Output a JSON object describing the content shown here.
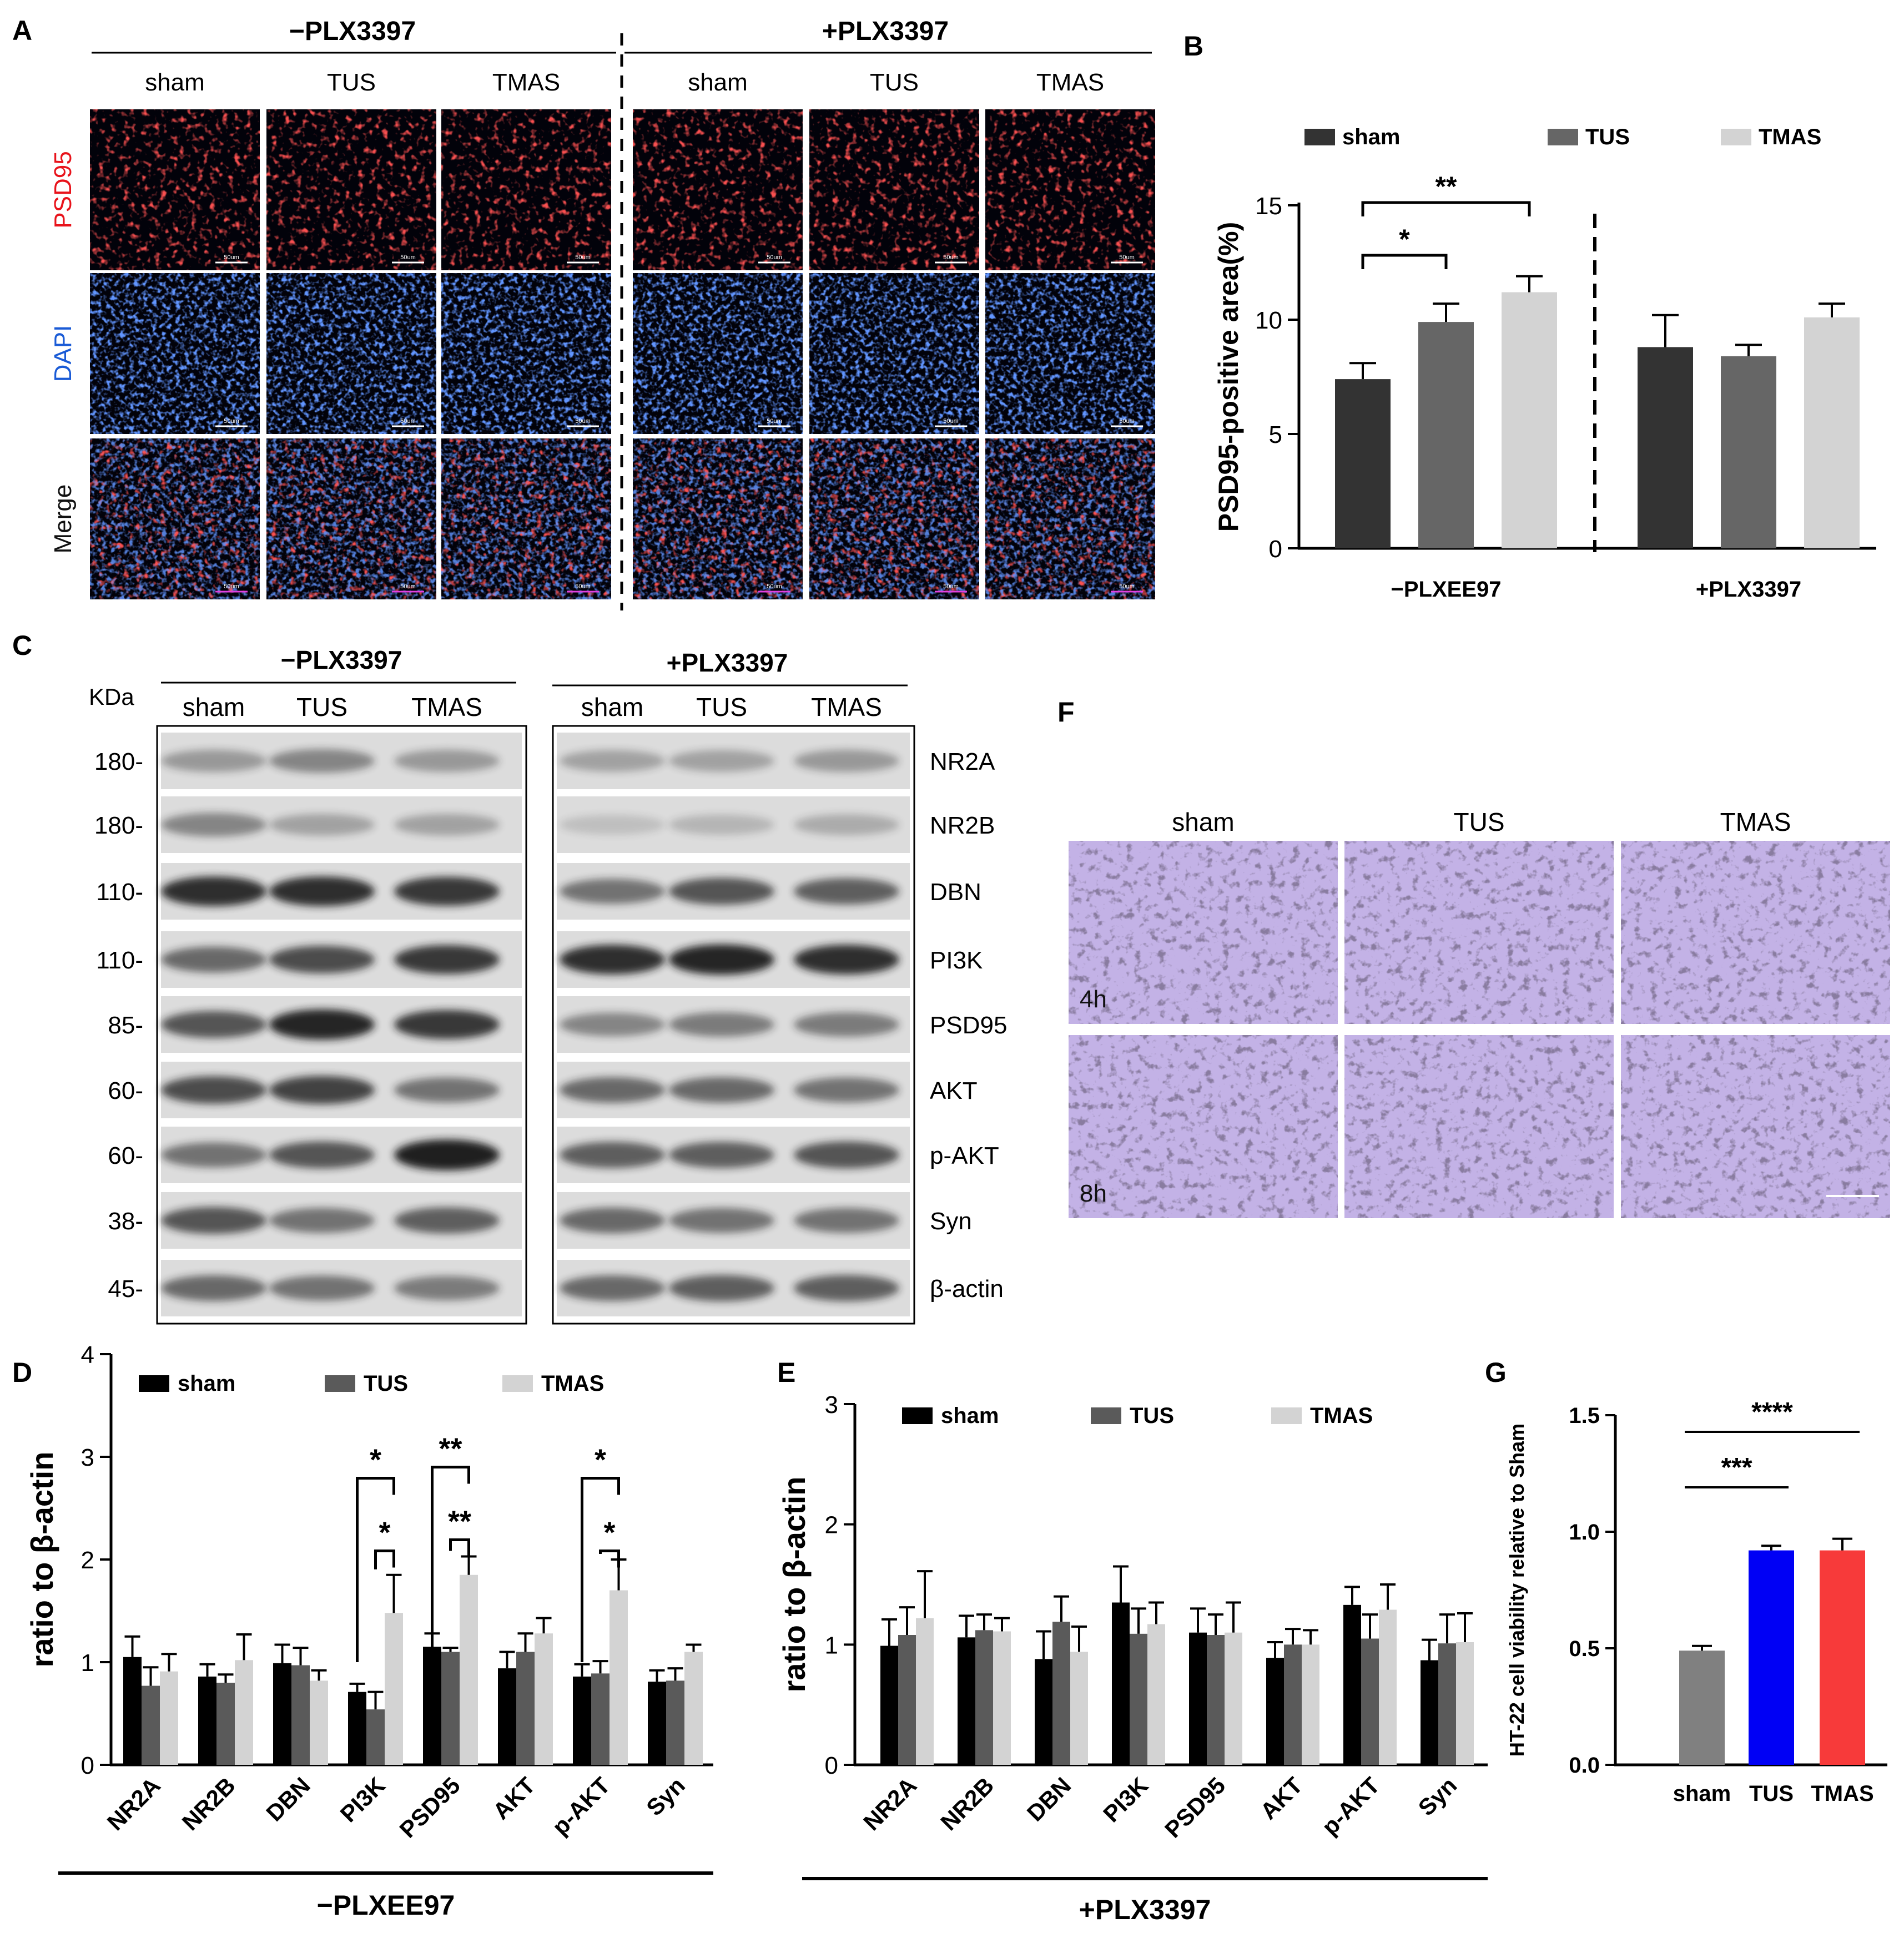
{
  "panel_letters": [
    "A",
    "B",
    "C",
    "D",
    "E",
    "F",
    "G"
  ],
  "panel_a": {
    "groups": [
      "−PLX3397",
      "+PLX3397"
    ],
    "columns": [
      "sham",
      "TUS",
      "TMAS",
      "sham",
      "TUS",
      "TMAS"
    ],
    "rows": [
      "PSD95",
      "DAPI",
      "Merge"
    ],
    "row_colors": [
      "#e8131b",
      "#1a5bd6",
      "#111111"
    ],
    "scale_label": "50um"
  },
  "panel_c": {
    "groups": [
      "−PLX3397",
      "+PLX3397"
    ],
    "kda_header": "KDa",
    "lanes_left": [
      "sham",
      "TUS",
      "TMAS"
    ],
    "lanes_right": [
      "sham",
      "TUS",
      "TMAS"
    ],
    "bands": [
      {
        "kda": "180-",
        "protein": "NR2A"
      },
      {
        "kda": "180-",
        "protein": "NR2B"
      },
      {
        "kda": "110-",
        "protein": "DBN"
      },
      {
        "kda": "110-",
        "protein": "PI3K"
      },
      {
        "kda": "85-",
        "protein": "PSD95"
      },
      {
        "kda": "60-",
        "protein": "AKT"
      },
      {
        "kda": "60-",
        "protein": "p-AKT"
      },
      {
        "kda": "38-",
        "protein": "Syn"
      },
      {
        "kda": "45-",
        "protein": "β-actin"
      }
    ]
  },
  "panel_f": {
    "columns": [
      "sham",
      "TUS",
      "TMAS"
    ],
    "rows": [
      "4h",
      "8h"
    ]
  },
  "chart_data": [
    {
      "id": "B",
      "type": "bar",
      "ylabel": "PSD95-positive area(%)",
      "ylim": [
        0,
        15
      ],
      "yticks": [
        "0",
        "5",
        "10",
        "15"
      ],
      "groups": [
        "−PLXEE97",
        "+PLX3397"
      ],
      "legend": [
        {
          "name": "sham",
          "color": "#333333"
        },
        {
          "name": "TUS",
          "color": "#666666"
        },
        {
          "name": "TMAS",
          "color": "#d3d3d3"
        }
      ],
      "series": [
        {
          "name": "sham",
          "values": [
            7.4,
            8.8
          ],
          "errors": [
            0.7,
            1.4
          ]
        },
        {
          "name": "TUS",
          "values": [
            9.9,
            8.4
          ],
          "errors": [
            0.8,
            0.5
          ]
        },
        {
          "name": "TMAS",
          "values": [
            11.2,
            10.1
          ],
          "errors": [
            0.7,
            0.6
          ]
        }
      ],
      "significance": [
        {
          "label": "*",
          "group": 0,
          "from": 0,
          "to": 1
        },
        {
          "label": "**",
          "group": 0,
          "from": 0,
          "to": 2
        }
      ]
    },
    {
      "id": "D",
      "type": "bar",
      "ylabel": "ratio to β-actin",
      "ylim": [
        0,
        4
      ],
      "yticks": [
        "0",
        "1",
        "2",
        "3",
        "4"
      ],
      "group_label": "−PLXEE97",
      "categories": [
        "NR2A",
        "NR2B",
        "DBN",
        "PI3K",
        "PSD95",
        "AKT",
        "p-AKT",
        "Syn"
      ],
      "legend": [
        {
          "name": "sham",
          "color": "#000000"
        },
        {
          "name": "TUS",
          "color": "#5a5a5a"
        },
        {
          "name": "TMAS",
          "color": "#d3d3d3"
        }
      ],
      "series": [
        {
          "name": "sham",
          "values": [
            1.05,
            0.86,
            0.99,
            0.71,
            1.15,
            0.94,
            0.86,
            0.81
          ],
          "errors": [
            0.2,
            0.12,
            0.18,
            0.08,
            0.13,
            0.16,
            0.12,
            0.11
          ]
        },
        {
          "name": "TUS",
          "values": [
            0.77,
            0.8,
            0.97,
            0.54,
            1.1,
            1.1,
            0.89,
            0.82
          ],
          "errors": [
            0.18,
            0.08,
            0.17,
            0.17,
            0.04,
            0.18,
            0.12,
            0.12
          ]
        },
        {
          "name": "TMAS",
          "values": [
            0.91,
            1.02,
            0.82,
            1.48,
            1.85,
            1.28,
            1.7,
            1.1
          ],
          "errors": [
            0.17,
            0.25,
            0.1,
            0.37,
            0.18,
            0.15,
            0.3,
            0.07
          ]
        }
      ],
      "significance": [
        {
          "label": "*",
          "cat": 3,
          "from": 0,
          "to": 2,
          "level": 0
        },
        {
          "label": "*",
          "cat": 3,
          "from": 1,
          "to": 2,
          "level": 1
        },
        {
          "label": "**",
          "cat": 4,
          "from": 0,
          "to": 2,
          "level": 0
        },
        {
          "label": "**",
          "cat": 4,
          "from": 1,
          "to": 2,
          "level": 1
        },
        {
          "label": "*",
          "cat": 6,
          "from": 0,
          "to": 2,
          "level": 0
        },
        {
          "label": "*",
          "cat": 6,
          "from": 1,
          "to": 2,
          "level": 1
        }
      ]
    },
    {
      "id": "E",
      "type": "bar",
      "ylabel": "ratio to β-actin",
      "ylim": [
        0,
        3
      ],
      "yticks": [
        "0",
        "1",
        "2",
        "3"
      ],
      "group_label": "+PLX3397",
      "categories": [
        "NR2A",
        "NR2B",
        "DBN",
        "PI3K",
        "PSD95",
        "AKT",
        "p-AKT",
        "Syn"
      ],
      "legend": [
        {
          "name": "sham",
          "color": "#000000"
        },
        {
          "name": "TUS",
          "color": "#5a5a5a"
        },
        {
          "name": "TMAS",
          "color": "#d3d3d3"
        }
      ],
      "series": [
        {
          "name": "sham",
          "values": [
            0.99,
            1.06,
            0.88,
            1.35,
            1.1,
            0.89,
            1.33,
            0.87
          ],
          "errors": [
            0.22,
            0.18,
            0.23,
            0.3,
            0.2,
            0.13,
            0.15,
            0.17
          ]
        },
        {
          "name": "TUS",
          "values": [
            1.08,
            1.12,
            1.19,
            1.09,
            1.08,
            1.0,
            1.05,
            1.01
          ],
          "errors": [
            0.23,
            0.13,
            0.21,
            0.21,
            0.17,
            0.13,
            0.2,
            0.24
          ]
        },
        {
          "name": "TMAS",
          "values": [
            1.22,
            1.11,
            0.94,
            1.17,
            1.1,
            1.0,
            1.29,
            1.02
          ],
          "errors": [
            0.39,
            0.11,
            0.21,
            0.18,
            0.25,
            0.12,
            0.21,
            0.24
          ]
        }
      ]
    },
    {
      "id": "G",
      "type": "bar",
      "ylabel": "HT-22 cell viability relative to Sham",
      "ylim": [
        0,
        1.5
      ],
      "yticks": [
        "0.0",
        "0.5",
        "1.0",
        "1.5"
      ],
      "categories": [
        "sham",
        "TUS",
        "TMAS"
      ],
      "colors": [
        "#808080",
        "#0000f5",
        "#f73a3a"
      ],
      "values": [
        0.49,
        0.92,
        0.92
      ],
      "errors": [
        0.02,
        0.02,
        0.05
      ],
      "significance": [
        {
          "label": "***",
          "from": 0,
          "to": 1
        },
        {
          "label": "****",
          "from": 0,
          "to": 2
        }
      ]
    }
  ]
}
